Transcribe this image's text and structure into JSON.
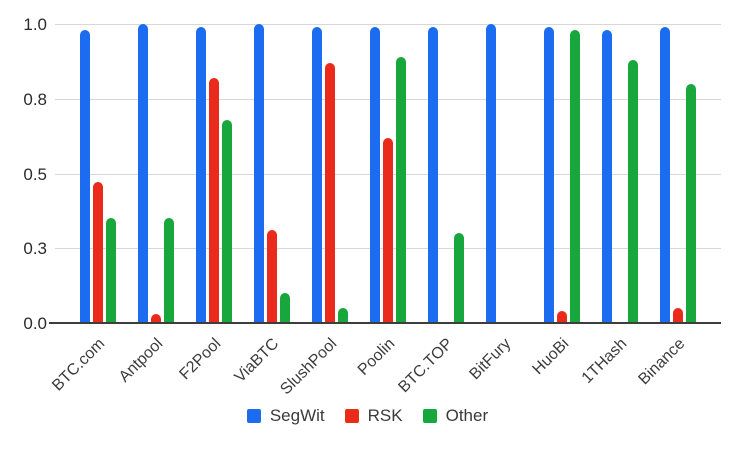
{
  "chart_data": {
    "type": "bar",
    "title": "",
    "categories": [
      "BTC.com",
      "Antpool",
      "F2Pool",
      "ViaBTC",
      "SlushPool",
      "Poolin",
      "BTC.TOP",
      "BitFury",
      "HuoBi",
      "1THash",
      "Binance"
    ],
    "series": [
      {
        "name": "SegWit",
        "color": "#1b6cf0",
        "values": [
          0.98,
          1.0,
          0.99,
          1.0,
          0.99,
          0.99,
          0.99,
          1.0,
          0.99,
          0.98,
          0.99
        ]
      },
      {
        "name": "RSK",
        "color": "#ea2a1a",
        "values": [
          0.47,
          0.03,
          0.82,
          0.31,
          0.87,
          0.62,
          0,
          0,
          0.04,
          0,
          0.05
        ]
      },
      {
        "name": "Other",
        "color": "#17a73c",
        "values": [
          0.35,
          0.35,
          0.68,
          0.1,
          0.05,
          0.89,
          0.3,
          0,
          0.98,
          0.88,
          0.8
        ]
      }
    ],
    "y_axis": {
      "range": [
        0,
        1
      ],
      "ticks": [
        {
          "value": 0,
          "label": "0.0"
        },
        {
          "value": 0.25,
          "label": "0.3"
        },
        {
          "value": 0.5,
          "label": "0.5"
        },
        {
          "value": 0.75,
          "label": "0.8"
        },
        {
          "value": 1.0,
          "label": "1.0"
        }
      ]
    },
    "legend_position": "bottom",
    "grid": true,
    "colors": {
      "gridline": "#d8d8d8",
      "axis_line": "#3d3d3d",
      "tick_label": "#2b2b2b",
      "legend_text": "#3a3a3a",
      "background": "#ffffff"
    }
  }
}
